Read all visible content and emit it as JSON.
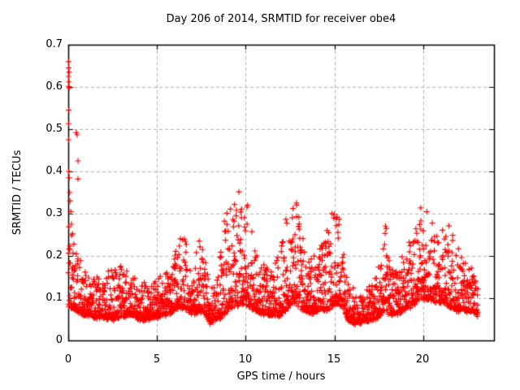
{
  "figure": {
    "background": "#ffffff"
  },
  "chart_data": {
    "type": "scatter",
    "title": "Day 206 of 2014, SRMTID for receiver obe4",
    "xlabel": "GPS time / hours",
    "ylabel": "SRMTID / TECUs",
    "xlim": [
      0,
      24
    ],
    "ylim": [
      0,
      0.7
    ],
    "xticks": [
      0,
      5,
      10,
      15,
      20
    ],
    "yticks": [
      0,
      0.1,
      0.2,
      0.3,
      0.4,
      0.5,
      0.6,
      0.7
    ],
    "xtick_labels": [
      "0",
      "5",
      "10",
      "15",
      "20"
    ],
    "ytick_labels": [
      "0",
      "0.1",
      "0.2",
      "0.3",
      "0.4",
      "0.5",
      "0.6",
      "0.7"
    ],
    "grid": true,
    "legend_position": "none",
    "marker": {
      "shape": "plus",
      "size": 7,
      "color": "#ff0000"
    },
    "colors": {
      "frame": "#000000",
      "grid": "#b0b0b0",
      "background": "#ffffff",
      "text": "#000000"
    },
    "series": [
      {
        "name": "SRMTID",
        "outlier_points": [
          [
            0.02,
            0.66
          ],
          [
            0.03,
            0.645
          ],
          [
            0.05,
            0.635
          ],
          [
            0.02,
            0.625
          ],
          [
            0.04,
            0.612
          ],
          [
            0.02,
            0.601
          ],
          [
            0.06,
            0.598
          ],
          [
            0.03,
            0.545
          ],
          [
            0.02,
            0.513
          ],
          [
            0.02,
            0.475
          ],
          [
            0.45,
            0.492
          ],
          [
            0.5,
            0.487
          ],
          [
            0.02,
            0.4
          ],
          [
            0.55,
            0.425
          ],
          [
            0.05,
            0.385
          ],
          [
            0.55,
            0.382
          ],
          [
            0.08,
            0.35
          ],
          [
            0.1,
            0.33
          ],
          [
            0.14,
            0.305
          ],
          [
            0.18,
            0.275
          ],
          [
            0.25,
            0.252
          ],
          [
            0.32,
            0.228
          ],
          [
            0.45,
            0.205
          ],
          [
            0.52,
            0.188
          ]
        ],
        "density_envelope": [
          [
            0.0,
            0.08,
            0.3
          ],
          [
            0.5,
            0.07,
            0.22
          ],
          [
            1.0,
            0.06,
            0.16
          ],
          [
            1.5,
            0.055,
            0.15
          ],
          [
            2.0,
            0.055,
            0.16
          ],
          [
            2.5,
            0.05,
            0.17
          ],
          [
            3.0,
            0.055,
            0.18
          ],
          [
            3.5,
            0.06,
            0.16
          ],
          [
            4.0,
            0.05,
            0.14
          ],
          [
            4.5,
            0.05,
            0.13
          ],
          [
            5.0,
            0.055,
            0.15
          ],
          [
            5.5,
            0.06,
            0.16
          ],
          [
            6.0,
            0.07,
            0.22
          ],
          [
            6.3,
            0.08,
            0.25
          ],
          [
            6.7,
            0.075,
            0.24
          ],
          [
            7.0,
            0.06,
            0.15
          ],
          [
            7.4,
            0.07,
            0.26
          ],
          [
            7.7,
            0.06,
            0.2
          ],
          [
            8.0,
            0.04,
            0.12
          ],
          [
            8.4,
            0.05,
            0.18
          ],
          [
            8.8,
            0.06,
            0.28
          ],
          [
            9.2,
            0.08,
            0.35
          ],
          [
            9.6,
            0.085,
            0.36
          ],
          [
            9.9,
            0.09,
            0.35
          ],
          [
            10.2,
            0.08,
            0.31
          ],
          [
            10.6,
            0.07,
            0.2
          ],
          [
            11.0,
            0.06,
            0.18
          ],
          [
            11.5,
            0.06,
            0.17
          ],
          [
            12.0,
            0.06,
            0.22
          ],
          [
            12.4,
            0.08,
            0.35
          ],
          [
            12.7,
            0.09,
            0.38
          ],
          [
            13.0,
            0.08,
            0.3
          ],
          [
            13.4,
            0.07,
            0.2
          ],
          [
            13.8,
            0.065,
            0.21
          ],
          [
            14.3,
            0.07,
            0.24
          ],
          [
            14.7,
            0.075,
            0.28
          ],
          [
            15.1,
            0.09,
            0.33
          ],
          [
            15.5,
            0.075,
            0.25
          ],
          [
            15.8,
            0.05,
            0.15
          ],
          [
            16.2,
            0.04,
            0.11
          ],
          [
            16.7,
            0.045,
            0.12
          ],
          [
            17.2,
            0.05,
            0.14
          ],
          [
            17.6,
            0.06,
            0.2
          ],
          [
            17.9,
            0.07,
            0.28
          ],
          [
            18.2,
            0.06,
            0.16
          ],
          [
            18.6,
            0.065,
            0.18
          ],
          [
            19.0,
            0.075,
            0.22
          ],
          [
            19.5,
            0.085,
            0.26
          ],
          [
            19.9,
            0.1,
            0.32
          ],
          [
            20.3,
            0.1,
            0.31
          ],
          [
            20.7,
            0.09,
            0.29
          ],
          [
            21.1,
            0.09,
            0.27
          ],
          [
            21.5,
            0.08,
            0.27
          ],
          [
            22.0,
            0.07,
            0.22
          ],
          [
            22.6,
            0.07,
            0.19
          ],
          [
            23.1,
            0.06,
            0.13
          ]
        ],
        "n_points": 2400,
        "t_end": 23.1,
        "seed": 20614,
        "shape_exponent": 2.5
      }
    ]
  }
}
